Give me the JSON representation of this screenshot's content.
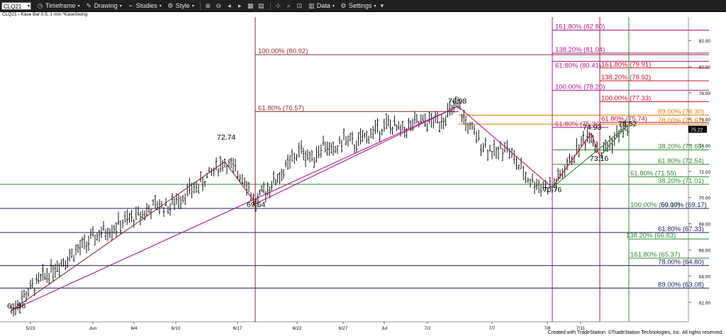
{
  "toolbar": {
    "symbol": "CLQ21",
    "items": [
      "Timeframe",
      "Drawing",
      "Studies",
      "Style",
      "Data",
      "Settings"
    ]
  },
  "subtitle": "CLQ21 - Kase Bar 0.5, 1 min *KaseSwing",
  "credit": "Created with TradeStation. ©TradeStation Technologies, Inc. All rights reserved.",
  "chart_data": {
    "type": "candlestick",
    "title": "",
    "xlabel": "",
    "ylabel": "",
    "ylim": [
      60.5,
      83.8
    ],
    "x_tick_labels": [
      "5/23",
      "Jun",
      "6/4",
      "6/10",
      "6/17",
      "6/22",
      "6/27",
      "Jul",
      "7/2",
      "7/7",
      "7/8",
      "7/11"
    ],
    "y_tick_labels": [
      62,
      64,
      66,
      68,
      70,
      72,
      74,
      76,
      78,
      80,
      82
    ],
    "last_price": "75.22",
    "swing_points": [
      {
        "label": "61.36",
        "value": 61.36
      },
      {
        "label": "72.74",
        "value": 72.74
      },
      {
        "label": "69.54",
        "value": 69.54
      },
      {
        "label": "76.98",
        "value": 76.98
      },
      {
        "label": "70.76",
        "value": 70.76
      },
      {
        "label": "74.93",
        "value": 74.93
      },
      {
        "label": "73.16",
        "value": 73.16
      },
      {
        "label": "75.52",
        "value": 75.52
      }
    ],
    "price_path": [
      61.36,
      62.8,
      64.6,
      66.0,
      67.2,
      68.0,
      68.6,
      69.4,
      69.3,
      70.2,
      70.9,
      71.7,
      72.3,
      72.74,
      72.0,
      71.6,
      70.2,
      69.54,
      70.4,
      71.2,
      72.0,
      72.9,
      73.6,
      73.0,
      74.1,
      73.4,
      74.5,
      74.0,
      74.8,
      75.6,
      75.1,
      75.6,
      75.9,
      76.98,
      75.7,
      74.6,
      73.8,
      73.3,
      74.1,
      73.2,
      72.1,
      71.3,
      70.9,
      70.76,
      71.6,
      72.4,
      73.3,
      74.2,
      74.93,
      73.8,
      73.16,
      74.0,
      74.7,
      75.52,
      75.22
    ],
    "fib_levels": [
      {
        "label": "100.00% (80.92)",
        "value": 80.92,
        "color": "#8b2b2b"
      },
      {
        "label": "61.80% (76.57)",
        "value": 76.57,
        "color": "#8b2b2b"
      },
      {
        "label": "161.80% (82.80)",
        "value": 82.8,
        "color": "#b0178e"
      },
      {
        "label": "138.20% (81.04)",
        "value": 81.04,
        "color": "#b0178e"
      },
      {
        "label": "61.80% (80.41)",
        "value": 80.41,
        "color": "#b0178e"
      },
      {
        "label": "100.00% (78.20)",
        "value": 78.2,
        "color": "#b0178e"
      },
      {
        "label": "61.80% (75.36)",
        "value": 75.36,
        "color": "#b0178e"
      },
      {
        "label": "161.80% (79.91)",
        "value": 79.91,
        "color": "#c8102e"
      },
      {
        "label": "138.20% (78.92)",
        "value": 78.92,
        "color": "#c8102e"
      },
      {
        "label": "100.00% (77.33)",
        "value": 77.33,
        "color": "#c8102e"
      },
      {
        "label": "61.80% (75.74)",
        "value": 75.74,
        "color": "#c8102e"
      },
      {
        "label": "89.00% (76.30)",
        "value": 76.3,
        "color": "#e07b00"
      },
      {
        "label": "78.00% (75.61)",
        "value": 75.61,
        "color": "#e07b00"
      },
      {
        "label": "38.20% (73.65)",
        "value": 73.65,
        "color": "#2e8b2e"
      },
      {
        "label": "61.80% (72.54)",
        "value": 72.54,
        "color": "#2e8b2e"
      },
      {
        "label": "61.80% (71.59)",
        "value": 71.59,
        "color": "#2e8b2e"
      },
      {
        "label": "38.20% (71.01)",
        "value": 71.01,
        "color": "#2e8b2e"
      },
      {
        "label": "100.00% (69.17)",
        "value": 69.17,
        "color": "#2e8b2e"
      },
      {
        "label": "138.20% (66.83)",
        "value": 66.83,
        "color": "#2e8b2e"
      },
      {
        "label": "161.80% (65.37)",
        "value": 65.37,
        "color": "#2e8b2e"
      },
      {
        "label": "50.00% (69.17)",
        "value": 69.17,
        "color": "#1d1d6b"
      },
      {
        "label": "61.80% (67.33)",
        "value": 67.33,
        "color": "#1d1d6b"
      },
      {
        "label": "78.00% (64.80)",
        "value": 64.8,
        "color": "#1d1d6b"
      },
      {
        "label": "89.00% (63.08)",
        "value": 63.08,
        "color": "#1d1d6b"
      }
    ],
    "grid": false
  }
}
